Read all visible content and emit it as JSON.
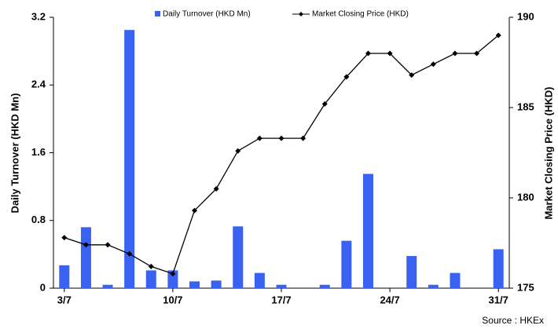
{
  "chart_data": {
    "type": "bar-line",
    "y_label": "Daily Turnover (HKD Mn)",
    "y2_label": "Market Closing Price (HKD)",
    "source": "Source : HKEx",
    "categories": [
      "3/7",
      null,
      null,
      null,
      null,
      "10/7",
      null,
      null,
      null,
      null,
      "17/7",
      null,
      null,
      null,
      null,
      "24/7",
      null,
      null,
      null,
      null,
      "31/7"
    ],
    "series": [
      {
        "name": "Daily Turnover (HKD Mn)",
        "type": "bar",
        "color": "#3a62f2",
        "values": [
          0.27,
          0.72,
          0.04,
          3.05,
          0.21,
          0.21,
          0.08,
          0.09,
          0.73,
          0.18,
          0.04,
          0,
          0.04,
          0.56,
          1.35,
          0,
          0.38,
          0.04,
          0.18,
          0,
          0.46
        ]
      },
      {
        "name": "Market Closing Price (HKD)",
        "type": "line",
        "axis": "y2",
        "color": "#000000",
        "values": [
          177.8,
          177.4,
          177.4,
          176.9,
          176.2,
          175.8,
          179.3,
          180.5,
          182.6,
          183.3,
          183.3,
          183.3,
          185.2,
          186.7,
          188,
          188,
          186.8,
          187.4,
          188,
          188,
          189
        ]
      }
    ],
    "ylim": [
      0,
      3.2
    ],
    "yticks": [
      0,
      0.8,
      1.6,
      2.4,
      3.2
    ],
    "y2lim": [
      175,
      190
    ],
    "y2ticks": [
      175,
      180,
      185,
      190
    ]
  }
}
